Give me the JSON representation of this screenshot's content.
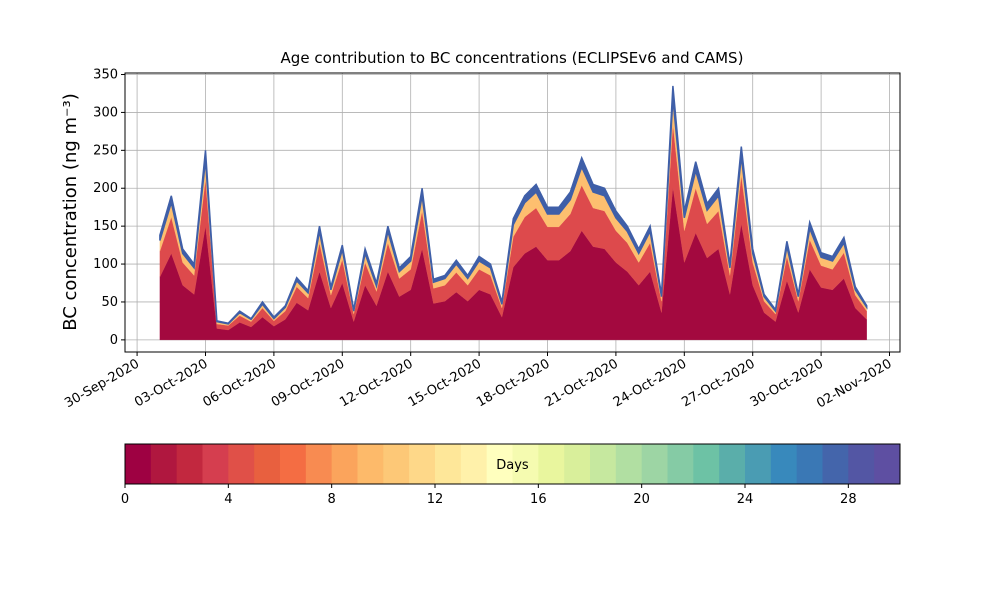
{
  "chart_data": {
    "type": "stacked_area",
    "title": "Age contribution to BC concentrations (ECLIPSEv6 and CAMS)",
    "y_label": "BC concentration (ng m⁻³)",
    "x": [
      1,
      1.5,
      2,
      2.5,
      3,
      3.5,
      4,
      4.5,
      5,
      5.5,
      6,
      6.5,
      7,
      7.5,
      8,
      8.5,
      9,
      9.5,
      10,
      10.5,
      11,
      11.5,
      12,
      12.5,
      13,
      13.5,
      14,
      14.5,
      15,
      15.5,
      16,
      16.5,
      17,
      17.5,
      18,
      18.5,
      19,
      19.5,
      20,
      20.5,
      21,
      21.5,
      22,
      22.5,
      23,
      23.5,
      24,
      24.5,
      25,
      25.5,
      26,
      26.5,
      27,
      27.5,
      28,
      28.5,
      29,
      29.5,
      30,
      30.5,
      31,
      31.5,
      32
    ],
    "series": [
      {
        "color": "#a3093f",
        "values": [
          83,
          114,
          72,
          60,
          150,
          15,
          13,
          23,
          17,
          30,
          18,
          27,
          49,
          39,
          90,
          42,
          75,
          24,
          72,
          45,
          90,
          57,
          66,
          120,
          48,
          51,
          63,
          51,
          66,
          60,
          30,
          96,
          114,
          123,
          105,
          105,
          117,
          144,
          123,
          120,
          102,
          90,
          72,
          90,
          36,
          201,
          102,
          141,
          108,
          120,
          60,
          153,
          72,
          36,
          24,
          78,
          36,
          93,
          69,
          66,
          81,
          42,
          27
        ]
      },
      {
        "color": "#dd4a4c",
        "values": [
          34,
          48,
          30,
          25,
          62,
          6,
          6,
          9,
          7,
          12,
          7,
          11,
          21,
          16,
          38,
          17,
          31,
          10,
          30,
          19,
          38,
          24,
          27,
          50,
          20,
          21,
          26,
          21,
          27,
          25,
          12,
          40,
          48,
          51,
          44,
          44,
          49,
          60,
          51,
          50,
          42,
          38,
          30,
          38,
          15,
          84,
          42,
          59,
          45,
          50,
          25,
          64,
          30,
          15,
          10,
          32,
          15,
          39,
          29,
          27,
          34,
          17,
          11
        ]
      },
      {
        "color": "#fdbf6f",
        "values": [
          14,
          19,
          12,
          10,
          25,
          3,
          2,
          4,
          3,
          5,
          3,
          5,
          8,
          7,
          15,
          7,
          13,
          4,
          12,
          7,
          15,
          9,
          11,
          20,
          8,
          9,
          11,
          9,
          11,
          10,
          5,
          16,
          19,
          21,
          17,
          17,
          19,
          24,
          21,
          20,
          17,
          15,
          12,
          15,
          6,
          33,
          17,
          23,
          18,
          20,
          10,
          25,
          12,
          6,
          4,
          13,
          6,
          15,
          11,
          11,
          13,
          7,
          5
        ]
      },
      {
        "color": "#3f5fa8",
        "values": [
          7,
          9,
          6,
          5,
          13,
          1,
          1,
          2,
          1,
          3,
          2,
          2,
          4,
          3,
          7,
          4,
          6,
          2,
          6,
          4,
          7,
          5,
          6,
          10,
          4,
          4,
          5,
          4,
          6,
          5,
          3,
          8,
          9,
          10,
          9,
          9,
          10,
          12,
          10,
          10,
          9,
          7,
          6,
          7,
          3,
          17,
          9,
          12,
          9,
          10,
          5,
          13,
          6,
          3,
          2,
          7,
          3,
          8,
          6,
          6,
          7,
          4,
          2
        ]
      }
    ],
    "xlim": [
      -0.53,
      33.46
    ],
    "xticks": [
      {
        "value": 0,
        "label": "30-Sep-2020"
      },
      {
        "value": 3,
        "label": "03-Oct-2020"
      },
      {
        "value": 6,
        "label": "06-Oct-2020"
      },
      {
        "value": 9,
        "label": "09-Oct-2020"
      },
      {
        "value": 12,
        "label": "12-Oct-2020"
      },
      {
        "value": 15,
        "label": "15-Oct-2020"
      },
      {
        "value": 18,
        "label": "18-Oct-2020"
      },
      {
        "value": 21,
        "label": "21-Oct-2020"
      },
      {
        "value": 24,
        "label": "24-Oct-2020"
      },
      {
        "value": 27,
        "label": "27-Oct-2020"
      },
      {
        "value": 30,
        "label": "30-Oct-2020"
      },
      {
        "value": 33,
        "label": "02-Nov-2020"
      }
    ],
    "ylim": [
      -16,
      352
    ],
    "yticks": [
      0,
      50,
      100,
      150,
      200,
      250,
      300,
      350
    ],
    "grid": true,
    "colorbar": {
      "label": "Days",
      "lim": [
        0,
        30
      ],
      "ticks": [
        0,
        4,
        8,
        12,
        16,
        20,
        24,
        28
      ],
      "colors": [
        "#9e0142",
        "#b0173f",
        "#c2283f",
        "#d53e4f",
        "#e05048",
        "#e8603f",
        "#f46d43",
        "#f88b51",
        "#fba45c",
        "#fdba6a",
        "#fdc877",
        "#fed889",
        "#fee799",
        "#fff1aa",
        "#ffffbe",
        "#f5fbb0",
        "#e9f69e",
        "#d9ef9b",
        "#c6e89f",
        "#b1dfa2",
        "#9dd5a4",
        "#85cba5",
        "#6dc2a5",
        "#5aaeaa",
        "#4a9cb3",
        "#3889bc",
        "#3a78b5",
        "#4465ab",
        "#5356a4",
        "#5e4fa2"
      ]
    }
  }
}
